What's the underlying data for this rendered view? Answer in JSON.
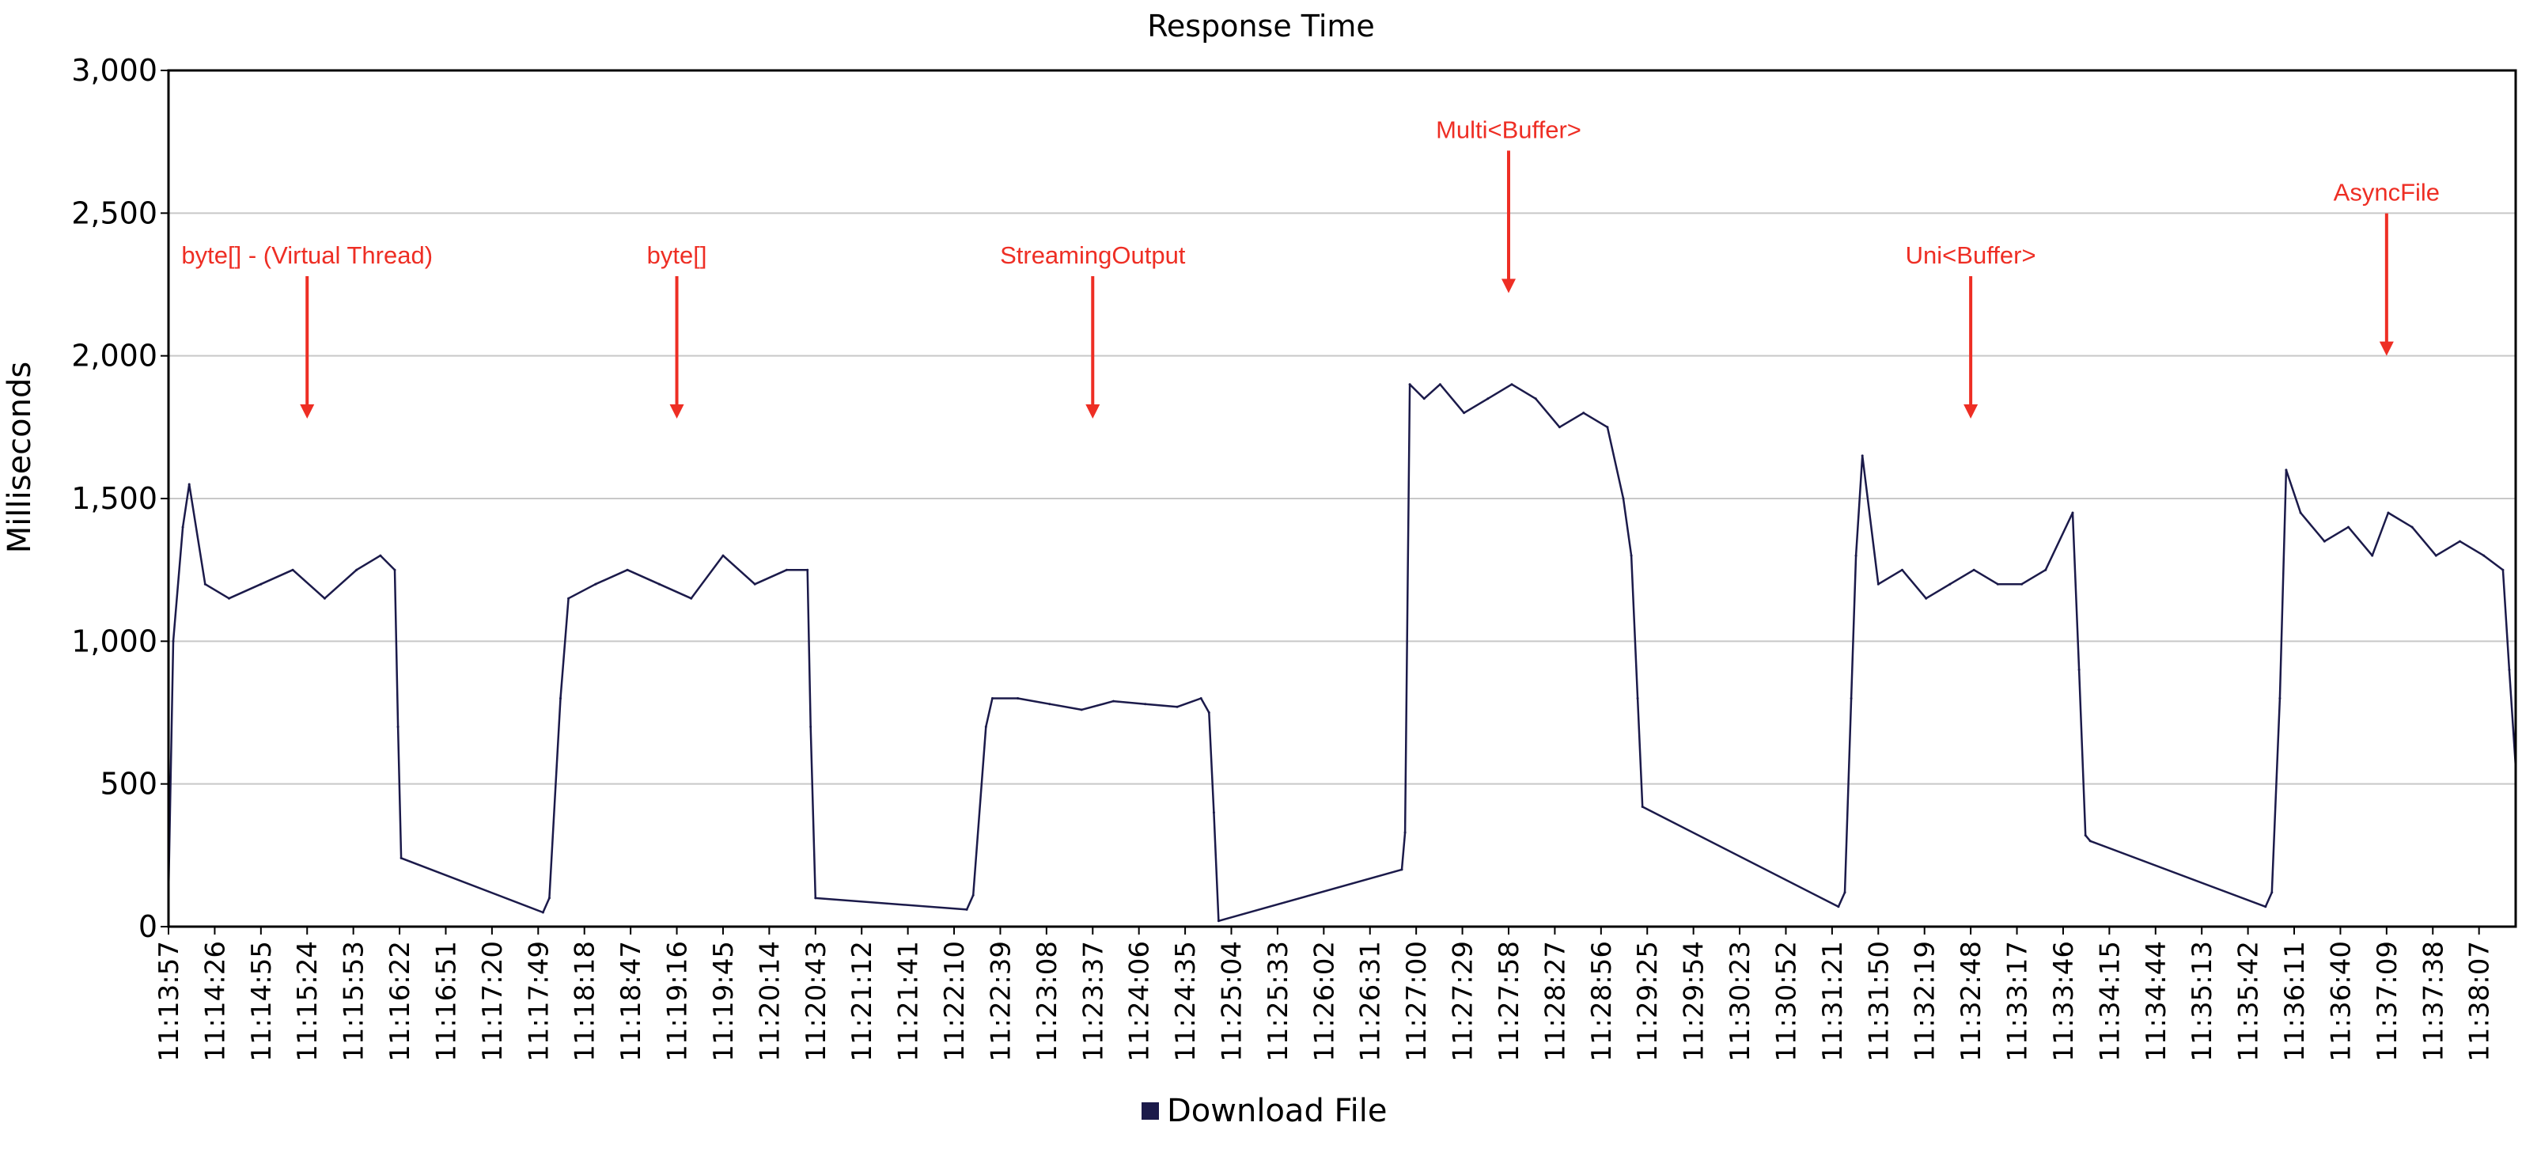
{
  "chart_data": {
    "type": "line",
    "title": "Response Time",
    "ylabel": "Milliseconds",
    "xlabel": "",
    "ylim": [
      0,
      3000
    ],
    "yticks": [
      0,
      500,
      1000,
      1500,
      2000,
      2500,
      3000
    ],
    "ytick_labels": [
      "0",
      "500",
      "1,000",
      "1,500",
      "2,000",
      "2,500",
      "3,000"
    ],
    "grid": true,
    "legend": "bottom-center",
    "x_start": "11:13:57",
    "x_end": "11:38:30",
    "xtick_labels": [
      "11:13:57",
      "11:14:26",
      "11:14:55",
      "11:15:24",
      "11:15:53",
      "11:16:22",
      "11:16:51",
      "11:17:20",
      "11:17:49",
      "11:18:18",
      "11:18:47",
      "11:19:16",
      "11:19:45",
      "11:20:14",
      "11:20:43",
      "11:21:12",
      "11:21:41",
      "11:22:10",
      "11:22:39",
      "11:23:08",
      "11:23:37",
      "11:24:06",
      "11:24:35",
      "11:25:04",
      "11:25:33",
      "11:26:02",
      "11:26:31",
      "11:27:00",
      "11:27:29",
      "11:27:58",
      "11:28:27",
      "11:28:56",
      "11:29:25",
      "11:29:54",
      "11:30:23",
      "11:30:52",
      "11:31:21",
      "11:31:50",
      "11:32:19",
      "11:32:48",
      "11:33:17",
      "11:33:46",
      "11:34:15",
      "11:34:44",
      "11:35:13",
      "11:35:42",
      "11:36:11",
      "11:36:40",
      "11:37:09",
      "11:37:38",
      "11:38:07"
    ],
    "series": [
      {
        "name": "Download File",
        "color": "#1b1a4a",
        "x": [
          "11:13:57",
          "11:14:00",
          "11:14:06",
          "11:14:10",
          "11:14:20",
          "11:14:35",
          "11:14:55",
          "11:15:15",
          "11:15:35",
          "11:15:55",
          "11:16:10",
          "11:16:19",
          "11:16:21",
          "11:16:23",
          "11:17:52",
          "11:17:56",
          "11:18:03",
          "11:18:08",
          "11:18:25",
          "11:18:45",
          "11:19:05",
          "11:19:25",
          "11:19:45",
          "11:20:05",
          "11:20:25",
          "11:20:38",
          "11:20:40",
          "11:20:43",
          "11:22:18",
          "11:22:22",
          "11:22:30",
          "11:22:34",
          "11:22:50",
          "11:23:10",
          "11:23:30",
          "11:23:50",
          "11:24:10",
          "11:24:30",
          "11:24:45",
          "11:24:50",
          "11:24:53",
          "11:24:56",
          "11:26:51",
          "11:26:53",
          "11:26:56",
          "11:27:05",
          "11:27:15",
          "11:27:30",
          "11:27:45",
          "11:28:00",
          "11:28:15",
          "11:28:30",
          "11:28:45",
          "11:29:00",
          "11:29:10",
          "11:29:15",
          "11:29:19",
          "11:29:22",
          "11:31:25",
          "11:31:29",
          "11:31:33",
          "11:31:36",
          "11:31:40",
          "11:31:50",
          "11:32:05",
          "11:32:20",
          "11:32:35",
          "11:32:50",
          "11:33:05",
          "11:33:20",
          "11:33:35",
          "11:33:52",
          "11:33:56",
          "11:34:00",
          "11:34:03",
          "11:35:53",
          "11:35:57",
          "11:36:02",
          "11:36:06",
          "11:36:15",
          "11:36:30",
          "11:36:45",
          "11:37:00",
          "11:37:10",
          "11:37:25",
          "11:37:40",
          "11:37:55",
          "11:38:10",
          "11:38:22",
          "11:38:26",
          "11:38:30"
        ],
        "values": [
          120,
          1000,
          1400,
          1550,
          1200,
          1150,
          1200,
          1250,
          1150,
          1250,
          1300,
          1250,
          700,
          240,
          50,
          100,
          800,
          1150,
          1200,
          1250,
          1200,
          1150,
          1300,
          1200,
          1250,
          1250,
          700,
          100,
          60,
          110,
          700,
          800,
          800,
          780,
          760,
          790,
          780,
          770,
          800,
          750,
          400,
          20,
          200,
          330,
          1900,
          1850,
          1900,
          1800,
          1850,
          1900,
          1850,
          1750,
          1800,
          1750,
          1500,
          1300,
          800,
          420,
          70,
          120,
          800,
          1300,
          1650,
          1200,
          1250,
          1150,
          1200,
          1250,
          1200,
          1200,
          1250,
          1450,
          900,
          320,
          300,
          70,
          120,
          800,
          1600,
          1450,
          1350,
          1400,
          1300,
          1450,
          1400,
          1300,
          1350,
          1300,
          1250,
          900,
          560
        ]
      }
    ],
    "annotations": [
      {
        "label": "byte[] - (Virtual Thread)",
        "x": "11:15:24",
        "y": 1780
      },
      {
        "label": "byte[]",
        "x": "11:19:16",
        "y": 1780
      },
      {
        "label": "StreamingOutput",
        "x": "11:23:37",
        "y": 1780
      },
      {
        "label": "Multi<Buffer>",
        "x": "11:27:58",
        "y": 2220
      },
      {
        "label": "Uni<Buffer>",
        "x": "11:32:48",
        "y": 1780
      },
      {
        "label": "AsyncFile",
        "x": "11:37:09",
        "y": 2000
      }
    ],
    "annotation_color": "#ee2e24"
  }
}
